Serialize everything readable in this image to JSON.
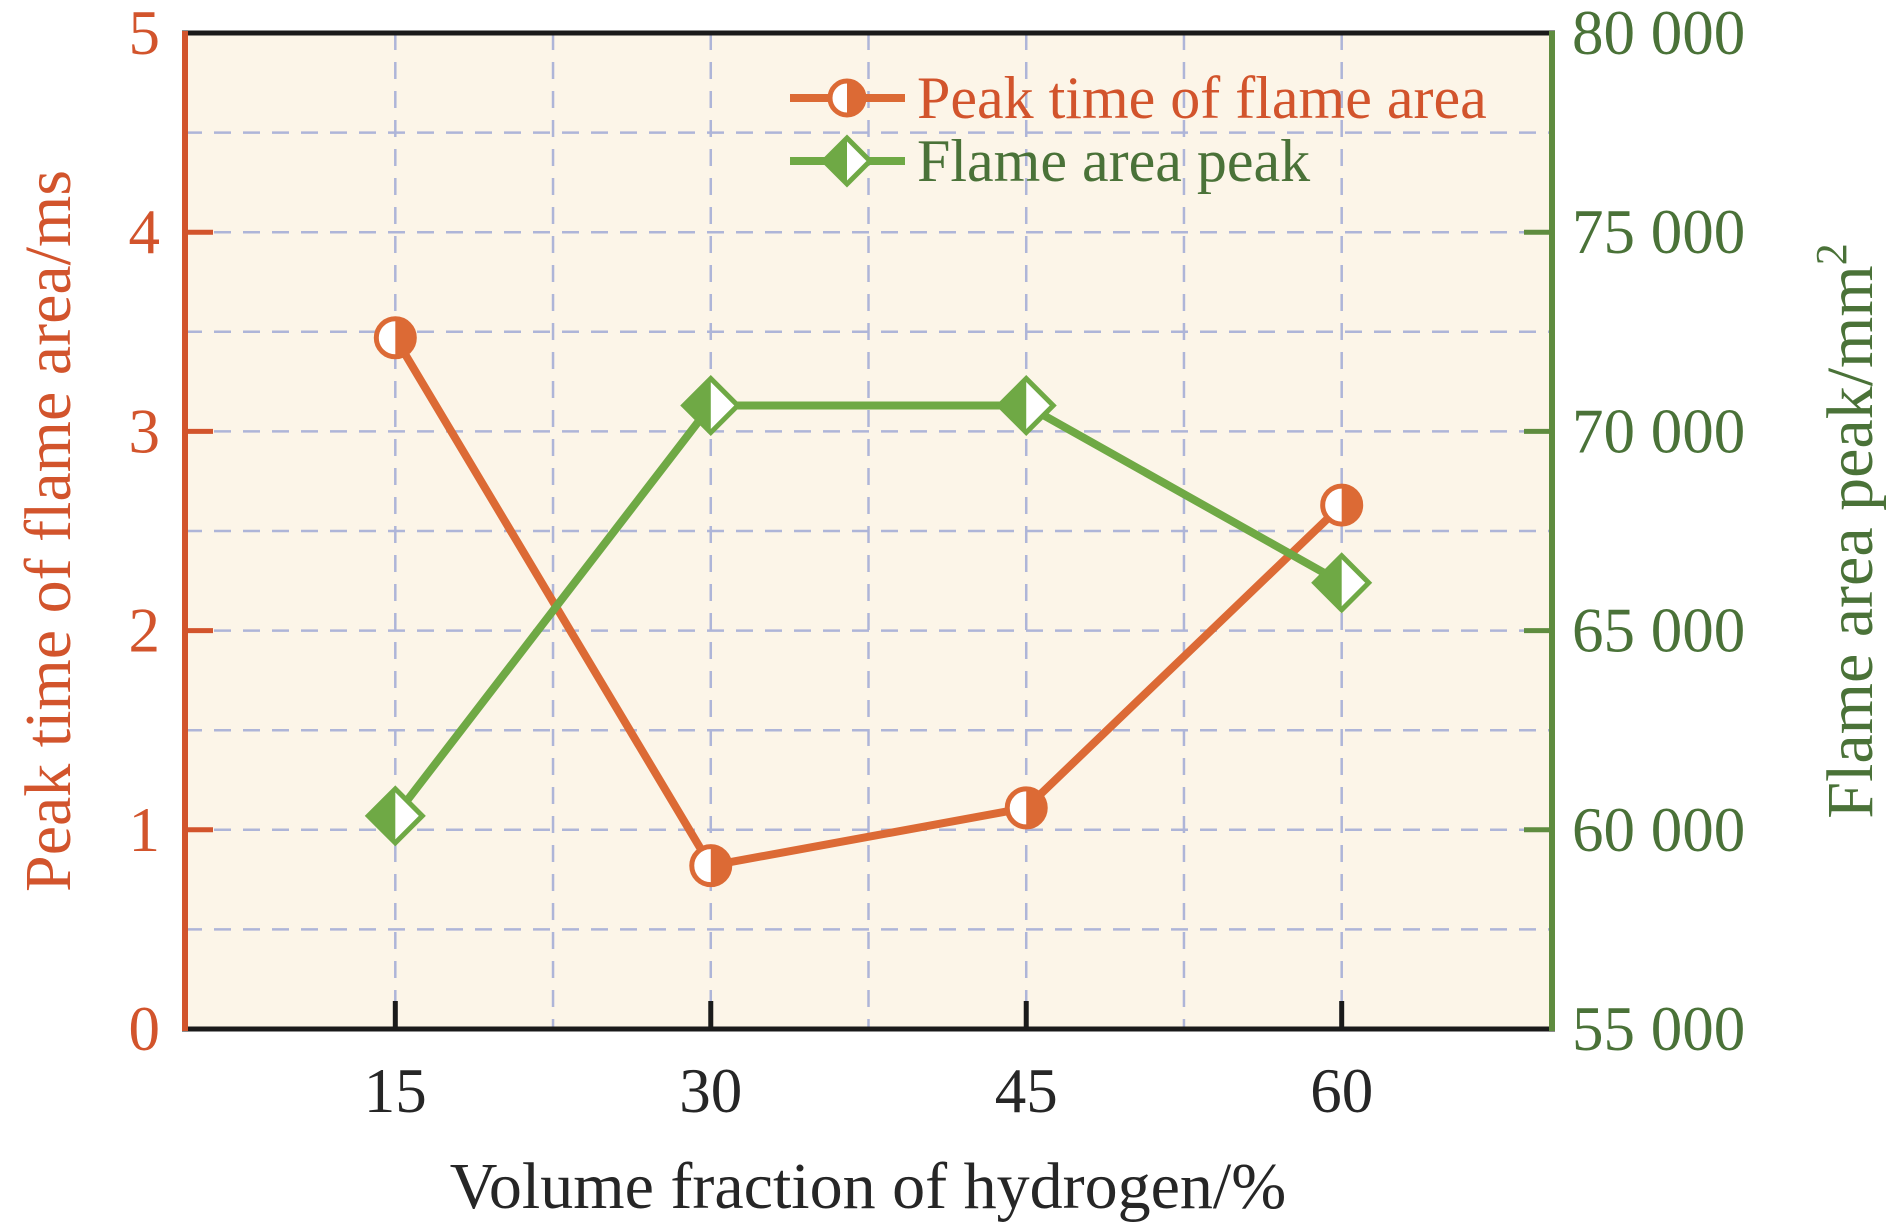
{
  "figure": {
    "background": "#FFFFFF",
    "plot_background": "#FCF5E8",
    "grid_color": "#AEB5D8",
    "frame_color": "#1A1A1A"
  },
  "chart_data": {
    "type": "line",
    "title": "",
    "x_axis": {
      "label": "Volume fraction of hydrogen/%",
      "range": [
        5,
        70
      ],
      "ticks": [
        15,
        30,
        45,
        60
      ],
      "tick_labels": [
        "15",
        "30",
        "45",
        "60"
      ],
      "minor_grid_x": [
        22.5,
        37.5,
        52.5
      ],
      "text_color": "#262626"
    },
    "left_axis": {
      "label": "Peak time of flame area/ms",
      "range": [
        0,
        5
      ],
      "ticks": [
        0,
        1,
        2,
        3,
        4,
        5
      ],
      "tick_labels": [
        "0",
        "1",
        "2",
        "3",
        "4",
        "5"
      ],
      "grid_step": 0.5,
      "text_color": "#D2542C",
      "spine_color": "#D2542C"
    },
    "right_axis": {
      "label": "Flame area peak/mm²",
      "label_base": "Flame area peak/mm",
      "label_superscript": "2",
      "range": [
        55000,
        80000
      ],
      "ticks": [
        55000,
        60000,
        65000,
        70000,
        75000,
        80000
      ],
      "tick_labels": [
        "55 000",
        "60 000",
        "65 000",
        "70 000",
        "75 000",
        "80 000"
      ],
      "text_color": "#4A7238",
      "spine_color": "#5F8C3F"
    },
    "series": [
      {
        "name": "Peak time of flame area",
        "axis": "left",
        "marker": "circle-half-right",
        "color": "#DC6A35",
        "text_color": "#D2542C",
        "x": [
          15,
          30,
          45,
          60
        ],
        "values": [
          3.47,
          0.82,
          1.11,
          2.63
        ]
      },
      {
        "name": "Flame area peak",
        "axis": "right",
        "marker": "diamond-half-left",
        "color": "#6FA945",
        "text_color": "#4A7238",
        "x": [
          15,
          30,
          45,
          60
        ],
        "values": [
          60350,
          70650,
          70650,
          66200
        ]
      }
    ],
    "legend": {
      "position": "upper-right-inside",
      "entries": [
        "Peak time of flame area",
        "Flame area peak"
      ]
    },
    "grid": "dashed, both directions, light blue"
  }
}
